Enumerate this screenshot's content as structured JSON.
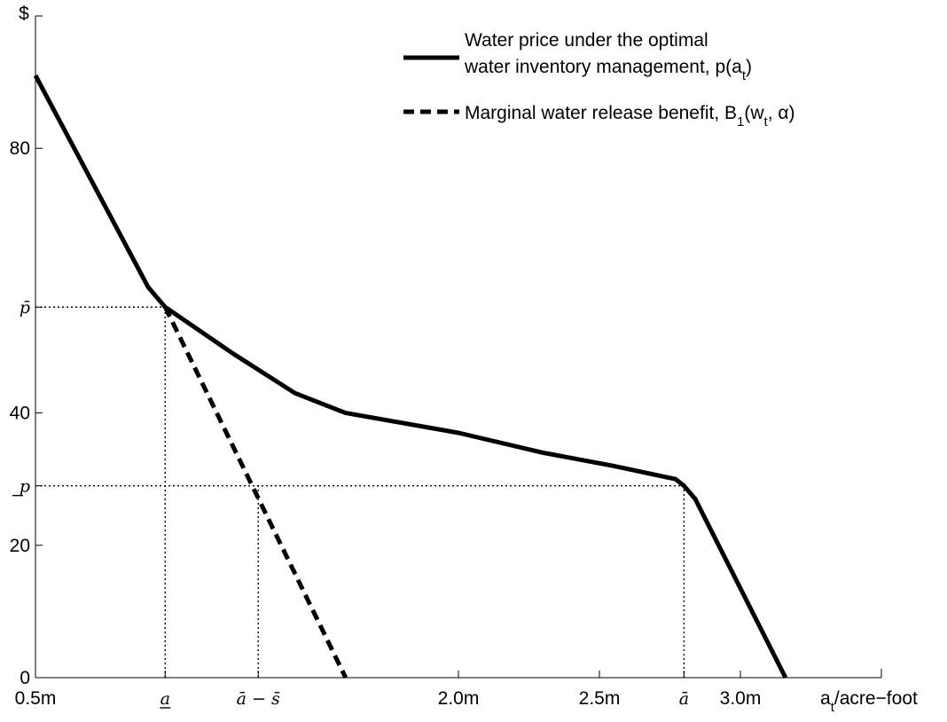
{
  "chart_data": {
    "type": "line",
    "title": "",
    "xlabel_main": "a",
    "xlabel_sub": "t",
    "xlabel_rest": "/acre−foot",
    "ylabel": "$",
    "xlim": [
      0.5,
      3.5
    ],
    "ylim": [
      0,
      100
    ],
    "x_ticks": [
      {
        "value": 0.5,
        "label": "0.5m",
        "math": false
      },
      {
        "value": 0.96,
        "label": "a",
        "math": true,
        "decoration": "underline"
      },
      {
        "value": 1.29,
        "label": "ā − s̄",
        "math": true,
        "decoration": "none"
      },
      {
        "value": 2.0,
        "label": "2.0m",
        "math": false
      },
      {
        "value": 2.5,
        "label": "2.5m",
        "math": false
      },
      {
        "value": 2.8,
        "label": "ā",
        "math": true,
        "decoration": "none"
      },
      {
        "value": 3.0,
        "label": "3.0m",
        "math": false
      }
    ],
    "y_ticks": [
      {
        "value": 0,
        "label": "0",
        "math": false
      },
      {
        "value": 20,
        "label": "20",
        "math": false
      },
      {
        "value": 29,
        "label": "p",
        "math": true,
        "decoration": "underline"
      },
      {
        "value": 40,
        "label": "40",
        "math": false
      },
      {
        "value": 56,
        "label": "p̄",
        "math": true,
        "decoration": "none"
      },
      {
        "value": 80,
        "label": "80",
        "math": false
      }
    ],
    "series": [
      {
        "name_line1": "Water price under the optimal",
        "name_line2_main": "water inventory management, p(a",
        "name_line2_sub": "t",
        "name_line2_end": ")",
        "style": "solid",
        "x": [
          0.5,
          0.9,
          0.96,
          1.2,
          1.42,
          1.6,
          2.0,
          2.3,
          2.55,
          2.77,
          2.8,
          2.84,
          3.16
        ],
        "y": [
          91,
          59,
          56,
          49,
          43,
          40,
          37,
          34,
          32,
          30,
          29,
          27,
          0
        ]
      },
      {
        "name_main": "Marginal water release benefit, B",
        "name_sub1": "1",
        "name_mid": "(w",
        "name_sub2": "t",
        "name_end": ", α)",
        "style": "dashed",
        "x": [
          0.96,
          1.6
        ],
        "y": [
          56,
          0
        ]
      }
    ],
    "reference_lines": [
      {
        "type": "h",
        "y": 56,
        "x_to": 0.96
      },
      {
        "type": "h",
        "y": 29,
        "x_to": 2.8
      },
      {
        "type": "v",
        "x": 0.96,
        "y_to": 56
      },
      {
        "type": "v",
        "x": 1.29,
        "y_to": 29
      },
      {
        "type": "v",
        "x": 2.8,
        "y_to": 29
      }
    ],
    "legend_position": "top-right",
    "grid": false
  }
}
